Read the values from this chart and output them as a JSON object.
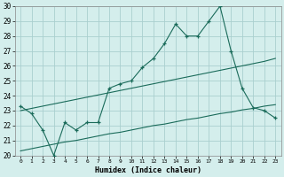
{
  "xlabel": "Humidex (Indice chaleur)",
  "background_color": "#d4eeec",
  "grid_color": "#aacfcf",
  "line_color": "#1a6b5a",
  "xlim": [
    -0.5,
    23.5
  ],
  "ylim": [
    20,
    30
  ],
  "xticks": [
    0,
    1,
    2,
    3,
    4,
    5,
    6,
    7,
    8,
    9,
    10,
    11,
    12,
    13,
    14,
    15,
    16,
    17,
    18,
    19,
    20,
    21,
    22,
    23
  ],
  "yticks": [
    20,
    21,
    22,
    23,
    24,
    25,
    26,
    27,
    28,
    29,
    30
  ],
  "main_y": [
    23.3,
    22.8,
    21.7,
    20.0,
    22.2,
    21.7,
    22.2,
    22.2,
    24.5,
    24.8,
    25.0,
    25.9,
    26.5,
    27.5,
    28.8,
    28.0,
    28.0,
    29.0,
    30.0,
    27.0,
    24.5,
    23.2,
    23.0,
    22.5
  ],
  "upper_trend_y": [
    23.0,
    23.15,
    23.3,
    23.45,
    23.6,
    23.75,
    23.9,
    24.05,
    24.2,
    24.35,
    24.5,
    24.65,
    24.8,
    24.95,
    25.1,
    25.25,
    25.4,
    25.55,
    25.7,
    25.85,
    26.0,
    26.15,
    26.3,
    26.5
  ],
  "lower_trend_y": [
    20.3,
    20.45,
    20.6,
    20.75,
    20.9,
    21.0,
    21.15,
    21.3,
    21.45,
    21.55,
    21.7,
    21.85,
    22.0,
    22.1,
    22.25,
    22.4,
    22.5,
    22.65,
    22.8,
    22.9,
    23.05,
    23.15,
    23.3,
    23.4
  ]
}
